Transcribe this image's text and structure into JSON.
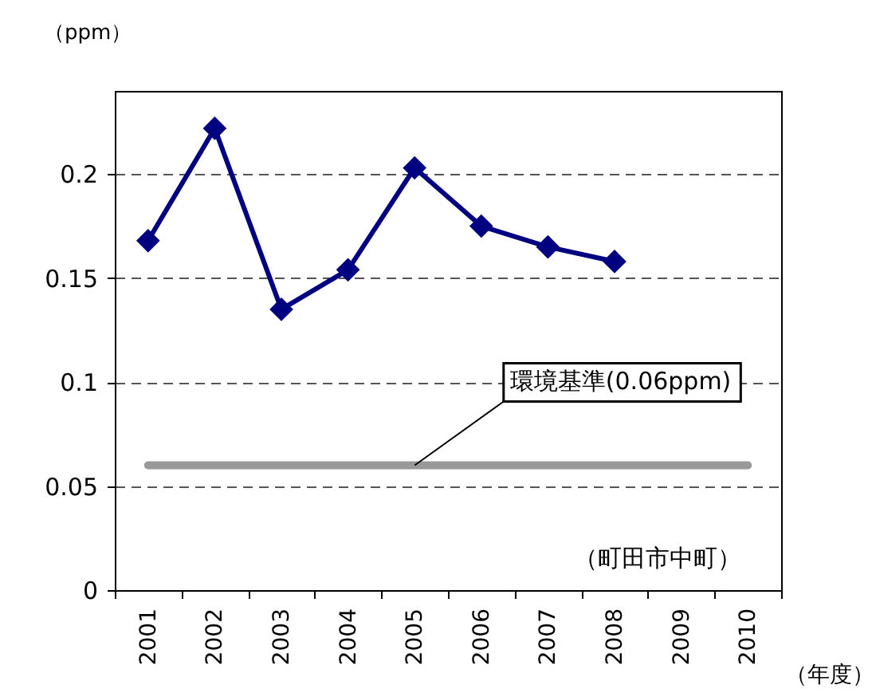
{
  "chart_data": {
    "type": "line",
    "categories": [
      "2001",
      "2002",
      "2003",
      "2004",
      "2005",
      "2006",
      "2007",
      "2008",
      "2009",
      "2010"
    ],
    "series": [
      {
        "color": "#000080",
        "values": [
          0.168,
          0.222,
          0.135,
          0.154,
          0.203,
          0.175,
          0.165,
          0.158,
          null,
          null
        ]
      }
    ],
    "ylabel": "（ppm）",
    "xlabel": "（年度）",
    "ylim": [
      0,
      0.24
    ],
    "yticks": [
      0,
      0.05,
      0.1,
      0.15,
      0.2
    ],
    "grid": "y",
    "marker": "diamond",
    "line_style": "solid",
    "ref_lines": [
      {
        "axis": "y",
        "value": 0.06,
        "label": "環境基準(0.06ppm)",
        "color": "#999999"
      }
    ],
    "annotations": [
      "（町田市中町）"
    ]
  }
}
